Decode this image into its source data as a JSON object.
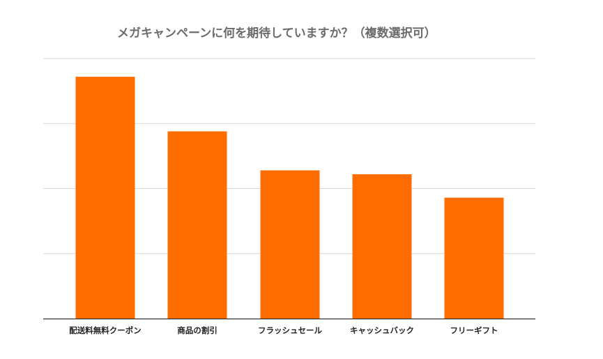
{
  "chart_data": {
    "type": "bar",
    "title": "メガキャンペーンに何を期待していますか？（複数選択可）",
    "categories": [
      "配送料無料クーポン",
      "商品の割引",
      "フラッシュセール",
      "キャッシュバック",
      "フリーギフト"
    ],
    "values": [
      93,
      72,
      57,
      55.5,
      46.5
    ],
    "ylim": [
      0,
      100
    ],
    "grid": true,
    "xlabel": "",
    "ylabel": "",
    "colors": {
      "bar": "#ff6d00",
      "grid": "#d6d6d6",
      "axis": "#333333",
      "title": "#6b6b6b"
    }
  }
}
